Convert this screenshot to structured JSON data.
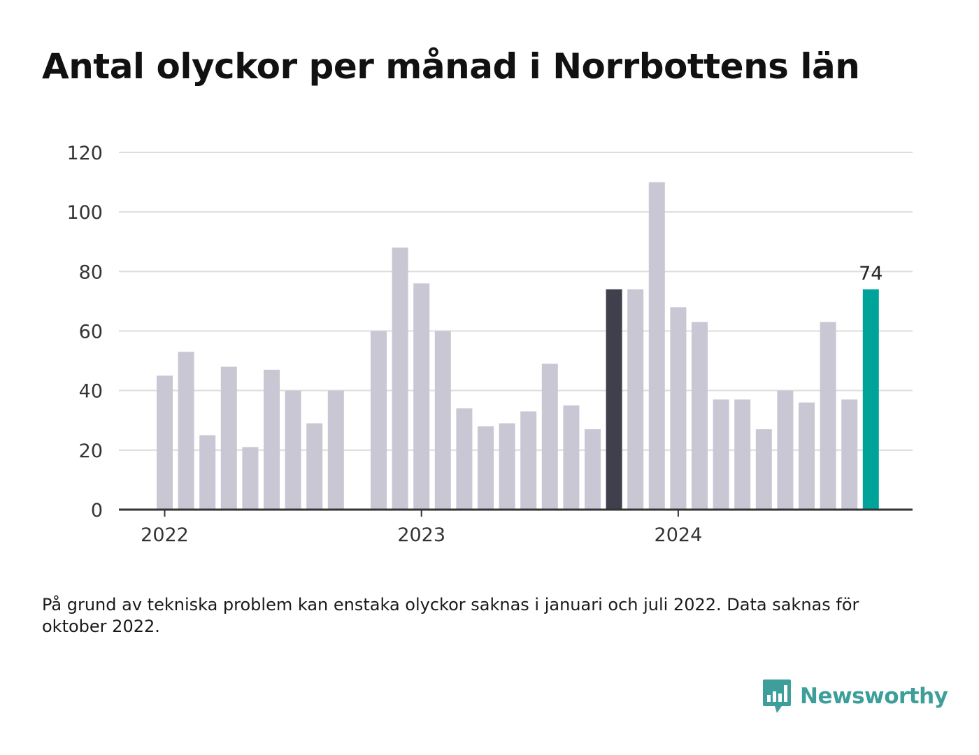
{
  "title": "Antal olyckor per månad i Norrbottens län",
  "footnote": "På grund av tekniska problem kan enstaka olyckor saknas i januari och juli 2022. Data saknas för oktober 2022.",
  "brand": {
    "name": "Newsworthy",
    "color": "#3d9e9a",
    "icon": "bar-chart-speech-bubble-icon"
  },
  "colors": {
    "bar": "#c8c7d3",
    "highlight_dark": "#403f4c",
    "highlight_accent": "#00a39a",
    "grid": "#dddddd",
    "axis": "#333333"
  },
  "chart_data": {
    "type": "bar",
    "title": "Antal olyckor per månad i Norrbottens län",
    "xlabel": "",
    "ylabel": "",
    "ylim": [
      0,
      120
    ],
    "yticks": [
      0,
      20,
      40,
      60,
      80,
      100,
      120
    ],
    "xticks": [
      {
        "label": "2022",
        "month": "2022-01"
      },
      {
        "label": "2023",
        "month": "2023-01"
      },
      {
        "label": "2024",
        "month": "2024-01"
      }
    ],
    "grid": true,
    "months": [
      "2022-01",
      "2022-02",
      "2022-03",
      "2022-04",
      "2022-05",
      "2022-06",
      "2022-07",
      "2022-08",
      "2022-09",
      "2022-10",
      "2022-11",
      "2022-12",
      "2023-01",
      "2023-02",
      "2023-03",
      "2023-04",
      "2023-05",
      "2023-06",
      "2023-07",
      "2023-08",
      "2023-09",
      "2023-10",
      "2023-11",
      "2023-12",
      "2024-01",
      "2024-02",
      "2024-03",
      "2024-04",
      "2024-05",
      "2024-06",
      "2024-07",
      "2024-08",
      "2024-09",
      "2024-10"
    ],
    "values": [
      45,
      53,
      25,
      48,
      21,
      47,
      40,
      29,
      40,
      null,
      60,
      88,
      76,
      60,
      34,
      28,
      29,
      33,
      49,
      35,
      27,
      74,
      74,
      110,
      68,
      63,
      37,
      37,
      27,
      40,
      36,
      63,
      37,
      74
    ],
    "highlight_dark": "2023-10",
    "highlight_accent": "2024-10",
    "value_labels": [
      {
        "month": "2024-10",
        "label": "74"
      }
    ]
  }
}
